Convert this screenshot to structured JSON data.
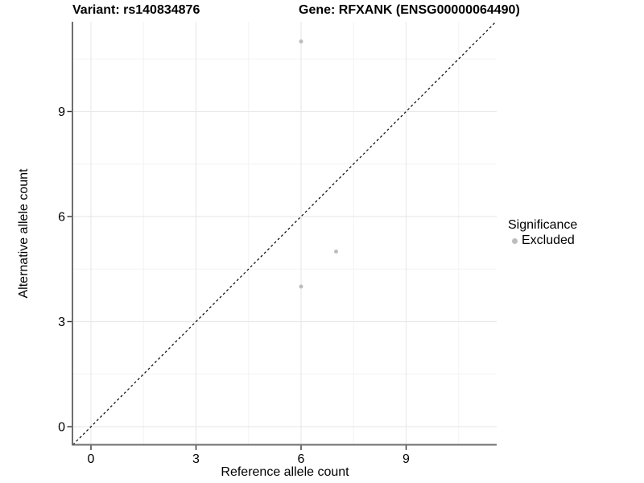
{
  "chart_data": {
    "type": "scatter",
    "title_left": "Variant: rs140834876",
    "title_right": "Gene: RFXANK (ENSG00000064490)",
    "xlabel": "Reference allele count",
    "ylabel": "Alternative allele count",
    "xticks": [
      0,
      3,
      6,
      9
    ],
    "yticks": [
      0,
      3,
      6,
      9
    ],
    "x_minor_ticks": [
      1.5,
      4.5,
      7.5,
      10.5
    ],
    "y_minor_ticks": [
      1.5,
      4.5,
      7.5,
      10.5
    ],
    "xlim": [
      -0.52,
      11.58
    ],
    "ylim": [
      -0.52,
      11.58
    ],
    "grid": true,
    "series": [
      {
        "name": "Excluded",
        "color": "#bdbdbd",
        "points": [
          [
            6,
            11
          ],
          [
            7,
            5
          ],
          [
            6,
            4
          ]
        ]
      }
    ],
    "identity_line": {
      "style": "dashed",
      "color": "#000000",
      "equation": "y = x"
    },
    "legend": {
      "title": "Significance",
      "position": "right",
      "items": [
        {
          "label": "Excluded",
          "color": "#bdbdbd",
          "marker": "circle"
        }
      ]
    }
  },
  "colors": {
    "background": "#ffffff",
    "axis_line": "#6e6e6e",
    "tick_mark": "#333333",
    "grid_major": "#e9e9e9",
    "grid_minor": "#f4f4f4",
    "text": "#000000",
    "point": "#bdbdbd"
  }
}
